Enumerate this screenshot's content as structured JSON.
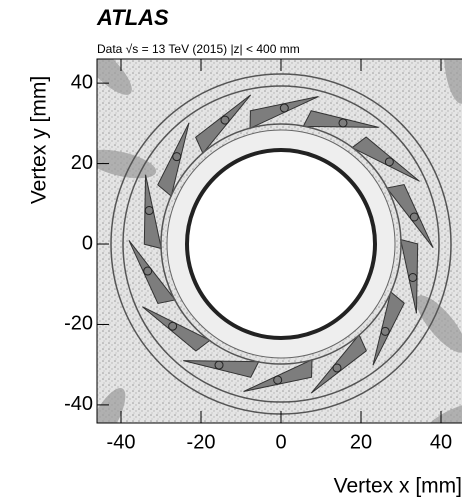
{
  "chart_data": {
    "type": "heatmap",
    "title": "ATLAS",
    "subtitle": "Data √s = 13 TeV (2015)   |z| < 400 mm",
    "x_label": "Vertex x [mm]",
    "y_label": "Vertex y [mm]",
    "xlim": [
      -46,
      46
    ],
    "xticks": [
      -40,
      -20,
      0,
      20,
      40
    ],
    "ylim": [
      -44.5,
      46
    ],
    "yticks": [
      -40,
      -20,
      0,
      20,
      40
    ]
  }
}
